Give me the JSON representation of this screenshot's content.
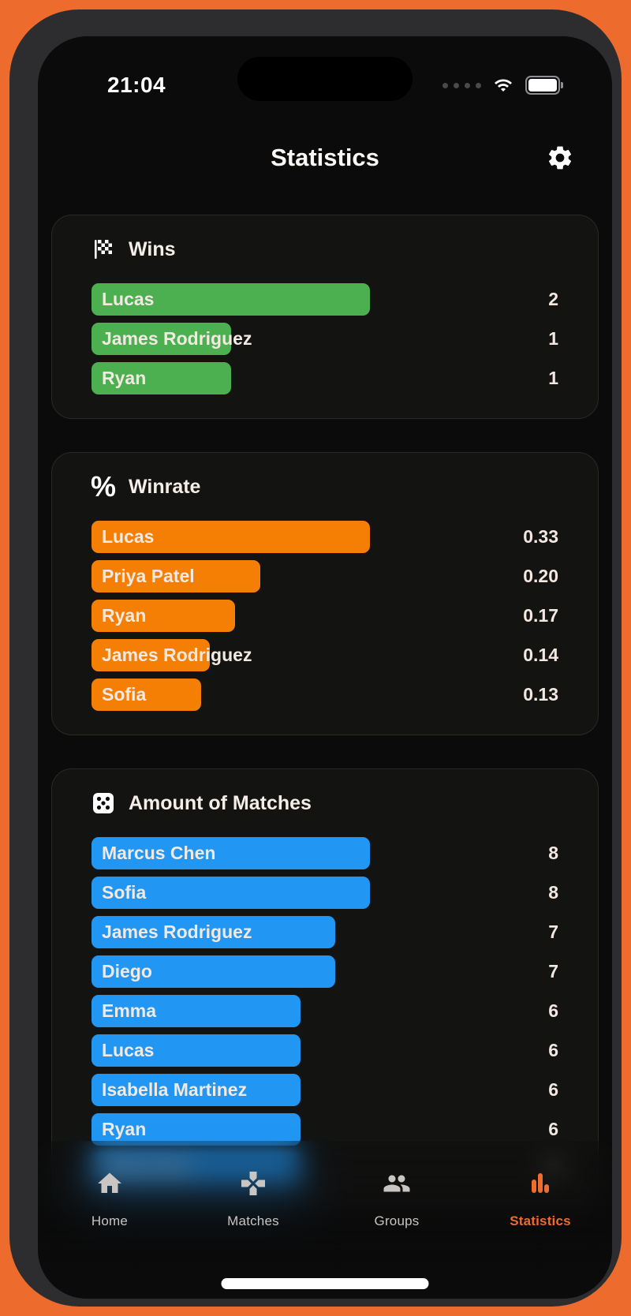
{
  "status_bar": {
    "time": "21:04",
    "cellular_icon": "cellular-signal-dots",
    "wifi_icon": "wifi-icon",
    "battery_icon": "battery-full-icon"
  },
  "header": {
    "title": "Statistics",
    "settings_icon": "gear-icon"
  },
  "icon_glyphs": {
    "percent-icon": "%"
  },
  "colors": {
    "accent": "#ED6C2E",
    "phone_background": "#ED6B2D",
    "wins_bar": "#4CAF50",
    "winrate_bar": "#F57F05",
    "matches_bar": "#2196F3",
    "text": "#F3E9E3"
  },
  "chart_data": [
    {
      "type": "bar",
      "orientation": "horizontal",
      "title": "Wins",
      "icon": "checkered-flag-icon",
      "color": "#4CAF50",
      "categories": [
        "Lucas",
        "James Rodriguez",
        "Ryan"
      ],
      "values": [
        2,
        1,
        1
      ],
      "value_labels": [
        "2",
        "1",
        "1"
      ],
      "scale_max": 2,
      "grid": false,
      "legend": false
    },
    {
      "type": "bar",
      "orientation": "horizontal",
      "title": "Winrate",
      "icon": "percent-icon",
      "color": "#F57F05",
      "categories": [
        "Lucas",
        "Priya Patel",
        "Ryan",
        "James Rodriguez",
        "Sofia"
      ],
      "values": [
        0.33,
        0.2,
        0.17,
        0.14,
        0.13
      ],
      "value_labels": [
        "0.33",
        "0.20",
        "0.17",
        "0.14",
        "0.13"
      ],
      "scale_max": 0.33,
      "grid": false,
      "legend": false
    },
    {
      "type": "bar",
      "orientation": "horizontal",
      "title": "Amount of Matches",
      "icon": "dice-icon",
      "color": "#2196F3",
      "categories": [
        "Marcus Chen",
        "Sofia",
        "James Rodriguez",
        "Diego",
        "Emma",
        "Lucas",
        "Isabella Martinez",
        "Ryan",
        "Olivia Kim"
      ],
      "values": [
        8,
        8,
        7,
        7,
        6,
        6,
        6,
        6,
        6
      ],
      "value_labels": [
        "8",
        "8",
        "7",
        "7",
        "6",
        "6",
        "6",
        "6",
        "6"
      ],
      "scale_max": 8,
      "grid": false,
      "legend": false,
      "blurred_row_index": 8
    }
  ],
  "tab_bar": {
    "items": [
      {
        "label": "Home",
        "icon": "home-icon",
        "active": false
      },
      {
        "label": "Matches",
        "icon": "gamepad-icon",
        "active": false
      },
      {
        "label": "Groups",
        "icon": "groups-icon",
        "active": false
      },
      {
        "label": "Statistics",
        "icon": "bar-chart-icon",
        "active": true
      }
    ]
  }
}
